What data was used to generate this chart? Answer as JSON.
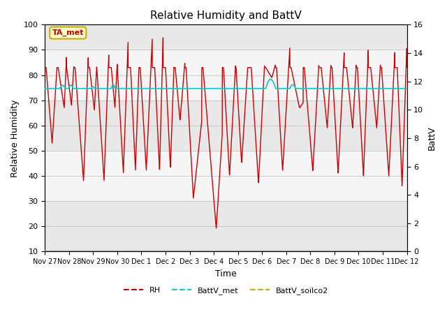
{
  "title": "Relative Humidity and BattV",
  "xlabel": "Time",
  "ylabel_left": "Relative Humidity",
  "ylabel_right": "BattV",
  "ylim_left": [
    10,
    100
  ],
  "ylim_right": [
    0,
    16
  ],
  "yticks_left": [
    10,
    20,
    30,
    40,
    50,
    60,
    70,
    80,
    90,
    100
  ],
  "yticks_right": [
    0,
    2,
    4,
    6,
    8,
    10,
    12,
    14,
    16
  ],
  "xtick_labels": [
    "Nov 27",
    "Nov 28",
    "Nov 29",
    "Nov 30",
    "Dec 1",
    "Dec 2",
    "Dec 3",
    "Dec 4",
    "Dec 5",
    "Dec 6",
    "Dec 7",
    "Dec 8",
    "Dec 9",
    "Dec 10",
    "Dec 11",
    "Dec 12"
  ],
  "rh_color": "#cc0000",
  "battv_met_color": "#00cccc",
  "battv_soilco2_color": "#ccaa00",
  "annotation_text": "TA_met",
  "annotation_color": "#cc0000",
  "annotation_bg": "#ffffcc",
  "annotation_border": "#ccaa00",
  "band_colors": [
    "#e8e8e8",
    "#f5f5f5"
  ],
  "legend_entries": [
    "RH",
    "BattV_met",
    "BattV_soilco2"
  ],
  "title_fontsize": 11,
  "axis_fontsize": 9,
  "tick_fontsize": 8
}
